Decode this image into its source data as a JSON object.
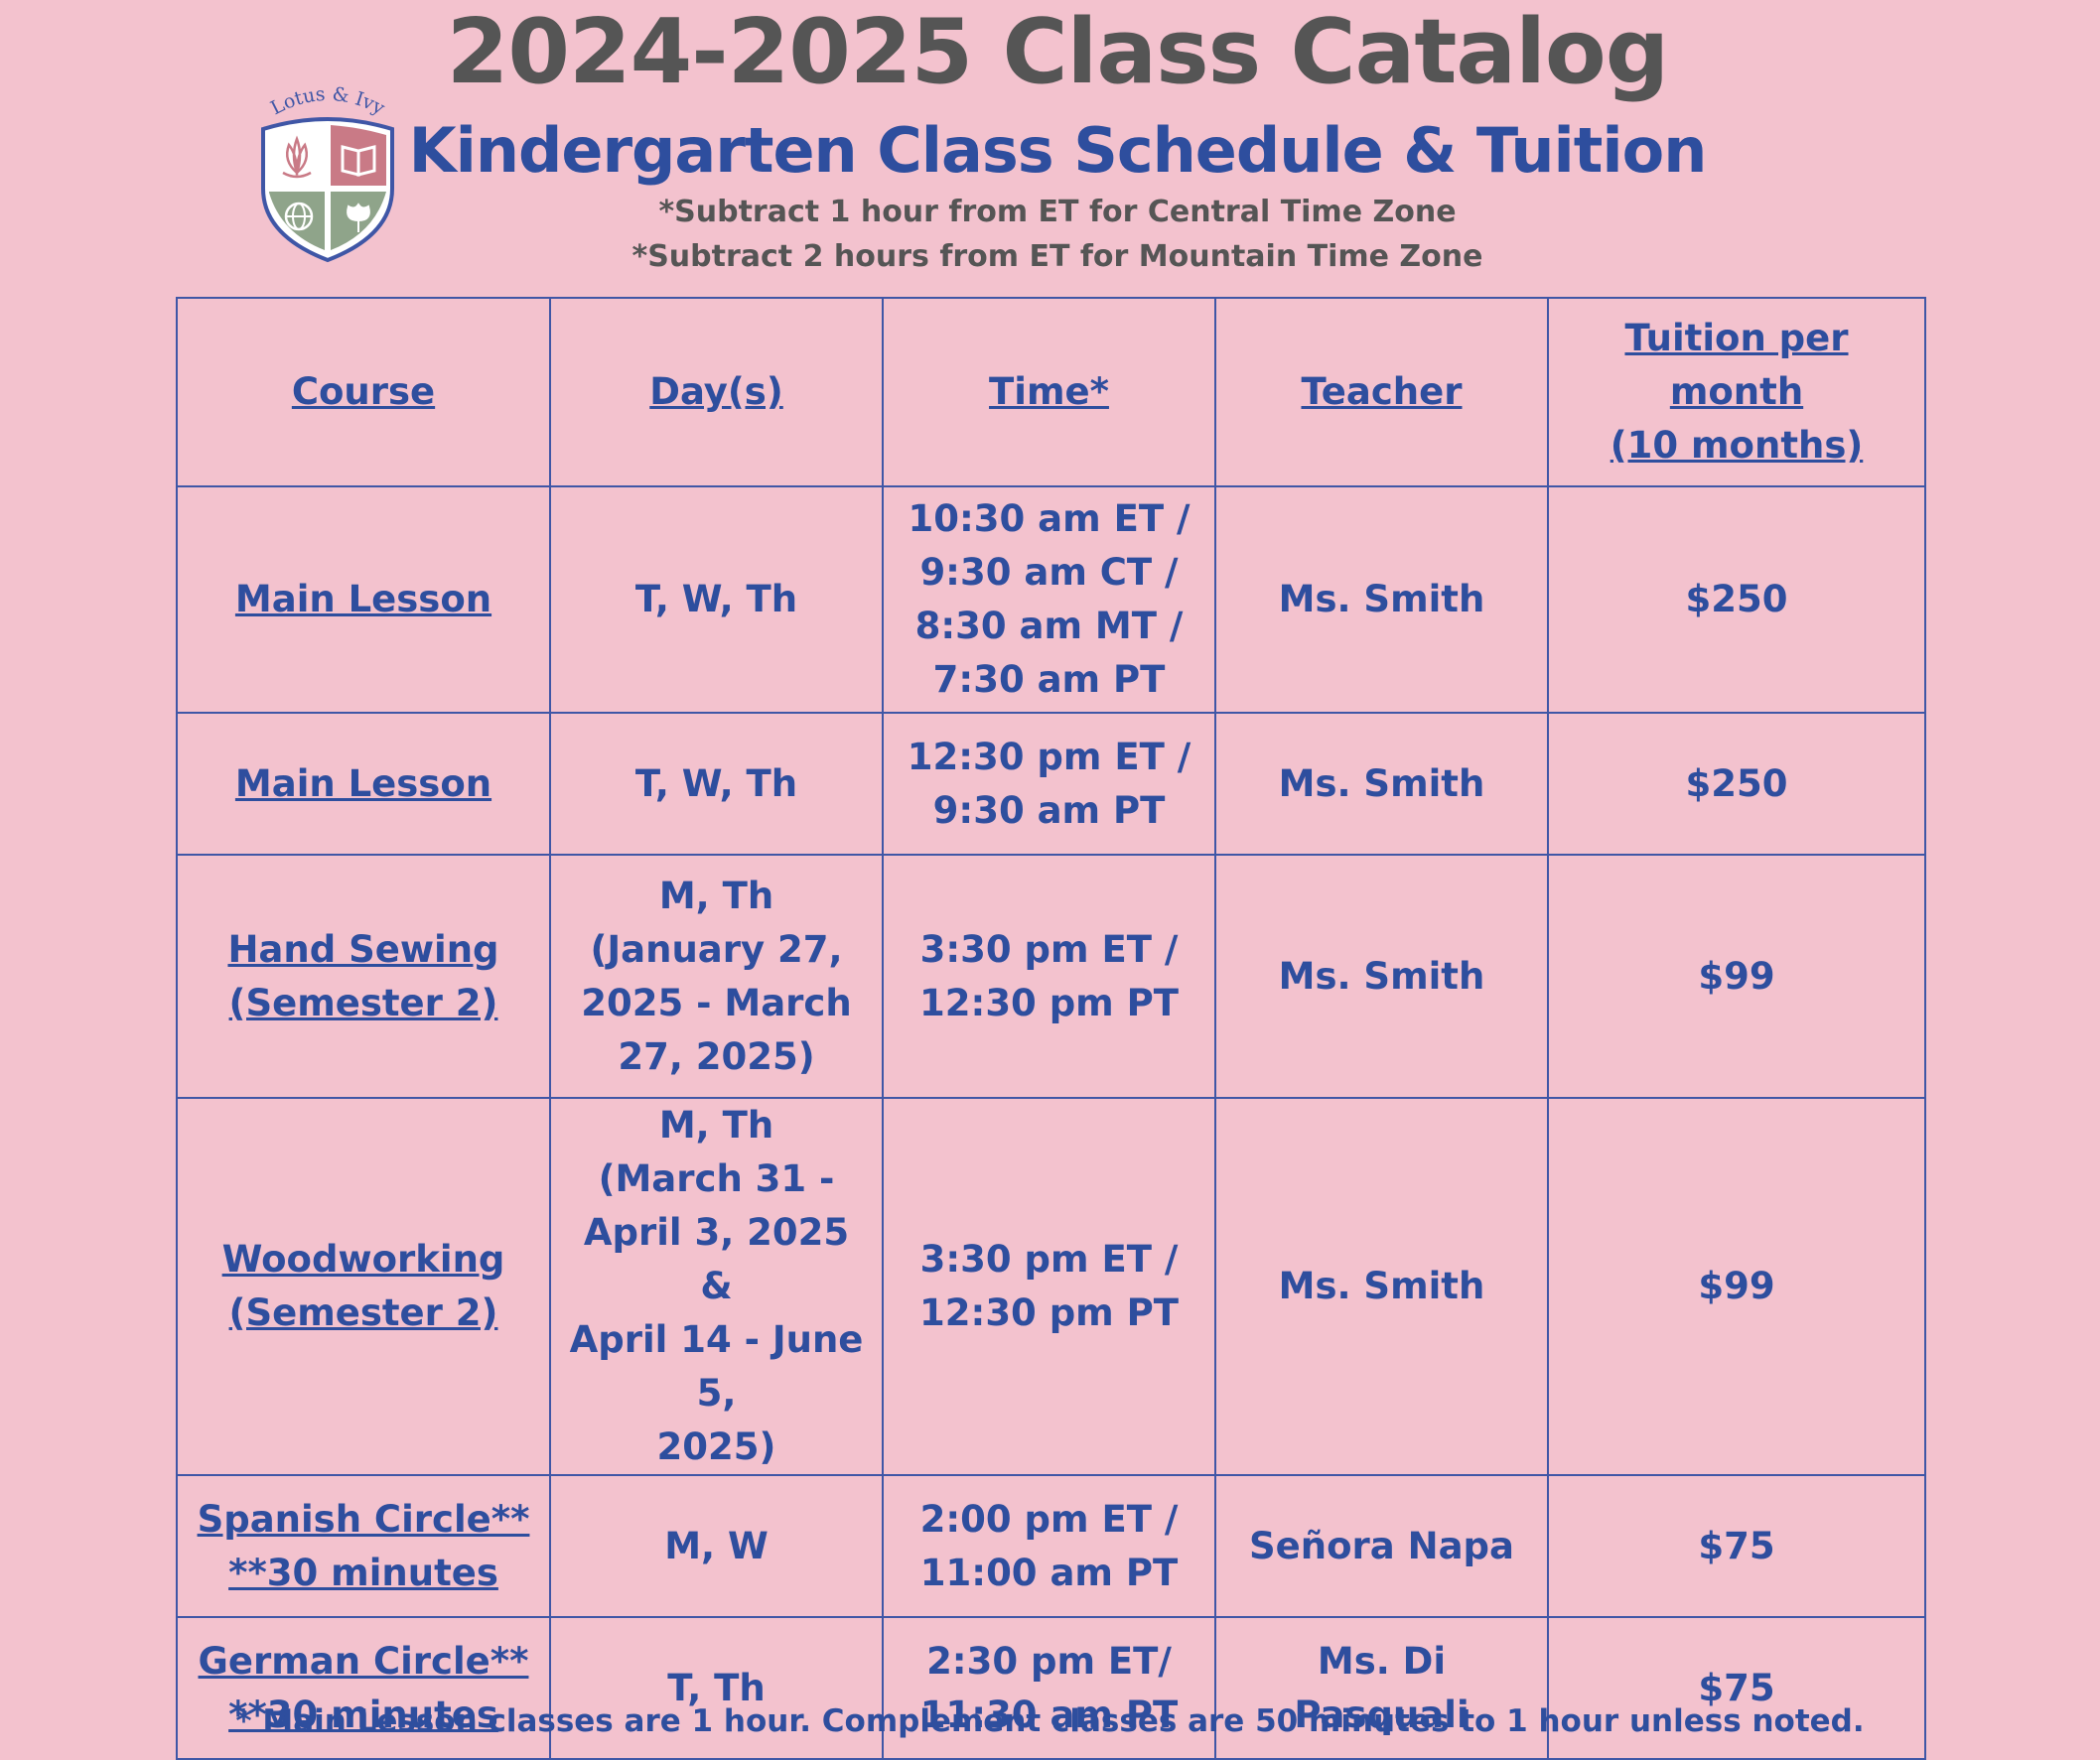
{
  "header": {
    "title": "2024-2025 Class Catalog",
    "subtitle": "Kindergarten Class Schedule & Tuition",
    "notes": [
      "*Subtract 1 hour from ET for Central Time Zone",
      "*Subtract 2 hours from ET for Mountain Time Zone"
    ]
  },
  "logo": {
    "text": "Lotus & Ivy",
    "icons": [
      "lotus-icon",
      "book-icon",
      "globe-icon",
      "ivy-leaf-icon"
    ],
    "colors": {
      "rose": "#c97a86",
      "sage": "#8fa48a",
      "outline": "#3f56a6"
    }
  },
  "table": {
    "headers": [
      "Course",
      "Day(s)",
      "Time*",
      "Teacher",
      "Tuition per month (10 months)"
    ],
    "header_lines": {
      "tuition": [
        "Tuition per month",
        "(10 months)"
      ]
    },
    "rows": [
      {
        "course": [
          "Main Lesson"
        ],
        "days": [
          "T, W, Th"
        ],
        "time": [
          "10:30 am ET /",
          "9:30 am CT /",
          "8:30 am MT /",
          "7:30 am PT"
        ],
        "teacher": "Ms. Smith",
        "tuition": "$250"
      },
      {
        "course": [
          "Main Lesson"
        ],
        "days": [
          "T, W, Th"
        ],
        "time": [
          "12:30 pm ET /",
          "9:30 am PT"
        ],
        "teacher": "Ms. Smith",
        "tuition": "$250"
      },
      {
        "course": [
          "Hand Sewing",
          "(Semester 2)"
        ],
        "days": [
          "M, Th",
          "(January 27,",
          "2025 - March",
          "27, 2025)"
        ],
        "time": [
          "3:30 pm ET /",
          "12:30 pm PT"
        ],
        "teacher": "Ms. Smith",
        "tuition": "$99"
      },
      {
        "course": [
          "Woodworking",
          "(Semester 2)"
        ],
        "days": [
          "M, Th",
          "(March 31 -",
          "April 3, 2025 &",
          "April 14 - June 5,",
          "2025)"
        ],
        "time": [
          "3:30 pm ET /",
          "12:30 pm PT"
        ],
        "teacher": "Ms. Smith",
        "tuition": "$99"
      },
      {
        "course": [
          "Spanish Circle**",
          "**30 minutes"
        ],
        "days": [
          "M, W"
        ],
        "time": [
          "2:00 pm ET /",
          "11:00 am PT"
        ],
        "teacher": "Señora Napa",
        "tuition": "$75"
      },
      {
        "course": [
          "German Circle**",
          "**30 minutes"
        ],
        "days": [
          "T, Th"
        ],
        "time": [
          "2:30 pm ET/",
          "11:30 am PT"
        ],
        "teacher": "Ms. Di Pasquali",
        "tuition": "$75"
      }
    ]
  },
  "footer": "* Main Lesson classes are 1 hour. Complement classes are 50 minutes to 1 hour unless noted.",
  "colors": {
    "background": "#f3c2ce",
    "blue": "#2e4e9e",
    "gray": "#555555",
    "border": "#3f56a6"
  }
}
